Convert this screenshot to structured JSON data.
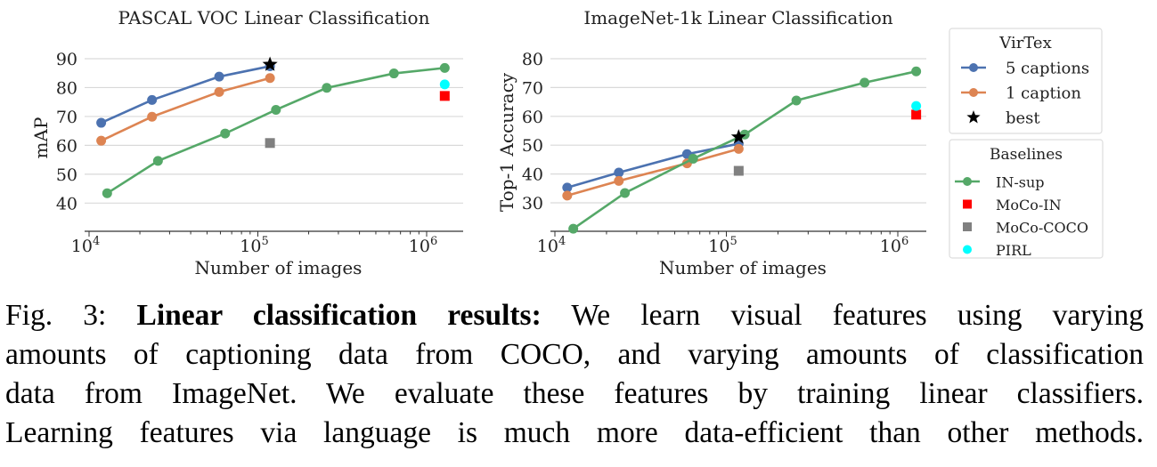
{
  "chart_data": [
    {
      "type": "line",
      "title": "PASCAL VOC Linear Classification",
      "xlabel": "Number of images",
      "ylabel": "mAP",
      "xscale": "log",
      "xlim": [
        9300,
        1600000
      ],
      "ylim": [
        30.2,
        97
      ],
      "yticks": [
        40,
        50,
        60,
        70,
        80,
        90
      ],
      "xticks": [
        {
          "value": 10000,
          "base": "10",
          "exp": "4"
        },
        {
          "value": 100000,
          "base": "10",
          "exp": "5"
        },
        {
          "value": 1000000,
          "base": "10",
          "exp": "6"
        }
      ],
      "grid": "horizontal",
      "series": [
        {
          "name": "5 captions",
          "group": "VirTex",
          "color": "#4c72b0",
          "x": [
            11800,
            23600,
            59000,
            118000
          ],
          "y": [
            67.8,
            75.7,
            83.8,
            87.4
          ]
        },
        {
          "name": "1 caption",
          "group": "VirTex",
          "color": "#dd8452",
          "x": [
            11800,
            23600,
            59000,
            118000
          ],
          "y": [
            61.6,
            69.9,
            78.5,
            83.3
          ]
        },
        {
          "name": "IN-sup",
          "group": "Baselines",
          "color": "#55a868",
          "x": [
            12800,
            25600,
            64000,
            128000,
            256000,
            640000,
            1280000
          ],
          "y": [
            43.4,
            54.6,
            64.1,
            72.3,
            79.9,
            84.9,
            86.8
          ]
        }
      ],
      "points": [
        {
          "name": "best",
          "marker": "star",
          "color": "#000000",
          "x": 118000,
          "y": 88.0
        },
        {
          "name": "MoCo-IN",
          "marker": "square",
          "color": "#ff0000",
          "x": 1280000,
          "y": 77.1
        },
        {
          "name": "MoCo-COCO",
          "marker": "square",
          "color": "#808080",
          "x": 118000,
          "y": 60.8
        },
        {
          "name": "PIRL",
          "marker": "circle",
          "color": "#00ffff",
          "x": 1280000,
          "y": 81.1
        }
      ]
    },
    {
      "type": "line",
      "title": "ImageNet-1k Linear Classification",
      "xlabel": "Number of images",
      "ylabel": "Top-1 Accuracy",
      "xscale": "log",
      "xlim": [
        9300,
        1600000
      ],
      "ylim": [
        20.2,
        87
      ],
      "yticks": [
        30,
        40,
        50,
        60,
        70,
        80
      ],
      "xticks": [
        {
          "value": 10000,
          "base": "10",
          "exp": "4"
        },
        {
          "value": 100000,
          "base": "10",
          "exp": "5"
        },
        {
          "value": 1000000,
          "base": "10",
          "exp": "6"
        }
      ],
      "grid": "horizontal",
      "series": [
        {
          "name": "5 captions",
          "group": "VirTex",
          "color": "#4c72b0",
          "x": [
            11800,
            23600,
            59000,
            118000
          ],
          "y": [
            35.3,
            40.5,
            46.9,
            50.5
          ]
        },
        {
          "name": "1 caption",
          "group": "VirTex",
          "color": "#dd8452",
          "x": [
            11800,
            23600,
            59000,
            118000
          ],
          "y": [
            32.5,
            37.6,
            43.7,
            48.7
          ]
        },
        {
          "name": "IN-sup",
          "group": "Baselines",
          "color": "#55a868",
          "x": [
            12800,
            25600,
            64000,
            128000,
            256000,
            640000,
            1280000
          ],
          "y": [
            21.0,
            33.4,
            45.3,
            53.7,
            65.5,
            71.7,
            75.6
          ]
        }
      ],
      "points": [
        {
          "name": "best",
          "marker": "star",
          "color": "#000000",
          "x": 118000,
          "y": 52.8
        },
        {
          "name": "MoCo-IN",
          "marker": "square",
          "color": "#ff0000",
          "x": 1280000,
          "y": 60.6
        },
        {
          "name": "MoCo-COCO",
          "marker": "square",
          "color": "#808080",
          "x": 118000,
          "y": 41.1
        },
        {
          "name": "PIRL",
          "marker": "circle",
          "color": "#00ffff",
          "x": 1280000,
          "y": 63.6
        }
      ]
    }
  ],
  "legend": {
    "groups": [
      {
        "title": "VirTex",
        "entries": [
          {
            "label": "5 captions",
            "marker": "line-circle",
            "color": "#4c72b0"
          },
          {
            "label": "1 caption",
            "marker": "line-circle",
            "color": "#dd8452"
          },
          {
            "label": "best",
            "marker": "star",
            "color": "#000000"
          }
        ]
      },
      {
        "title": "Baselines",
        "entries": [
          {
            "label": "IN-sup",
            "marker": "line-circle",
            "color": "#55a868"
          },
          {
            "label": "MoCo-IN",
            "marker": "square",
            "color": "#ff0000"
          },
          {
            "label": "MoCo-COCO",
            "marker": "square",
            "color": "#808080"
          },
          {
            "label": "PIRL",
            "marker": "circle",
            "color": "#00ffff"
          }
        ]
      }
    ]
  },
  "caption": {
    "label": "Fig. 3:",
    "bold": "Linear classification results:",
    "line1_rest": "We learn visual features using varying",
    "lines": [
      "amounts of captioning data from COCO, and varying amounts of classification",
      "data from ImageNet. We evaluate these features by training linear classifiers.",
      "Learning features via language is much more data-efficient than other methods."
    ]
  }
}
